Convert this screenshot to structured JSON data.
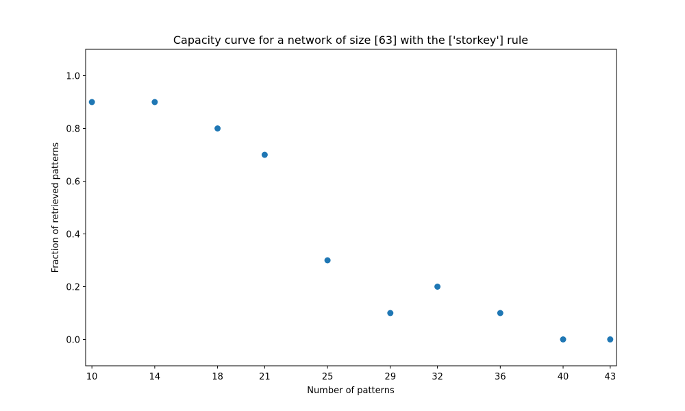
{
  "chart_data": {
    "type": "scatter",
    "title": "Capacity curve for a network of size [63] with the ['storkey'] rule",
    "xlabel": "Number of patterns",
    "ylabel": "Fraction of retrieved patterns",
    "x": [
      10,
      14,
      18,
      21,
      25,
      29,
      32,
      36,
      40,
      43
    ],
    "y": [
      0.9,
      0.9,
      0.8,
      0.7,
      0.3,
      0.1,
      0.2,
      0.1,
      0.0,
      0.0
    ],
    "x_ticks": [
      "10",
      "14",
      "18",
      "21",
      "25",
      "29",
      "32",
      "36",
      "40",
      "43"
    ],
    "y_ticks": [
      "0.0",
      "0.2",
      "0.4",
      "0.6",
      "0.8",
      "1.0"
    ],
    "xlim": [
      9.6,
      43.4
    ],
    "ylim": [
      -0.1,
      1.1
    ],
    "marker_color": "#1f77b4",
    "grid": false,
    "legend": false
  }
}
